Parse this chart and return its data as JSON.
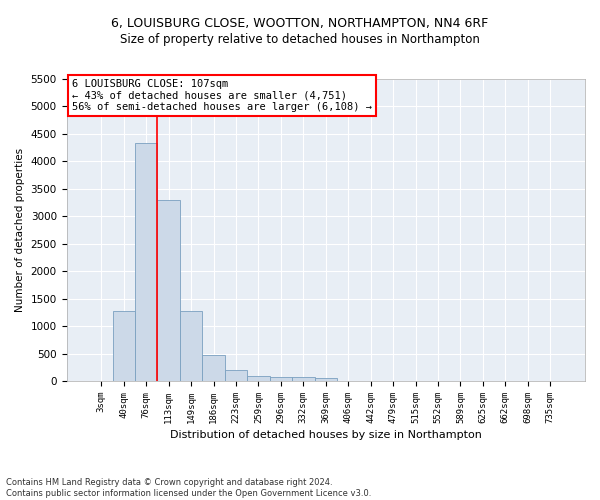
{
  "title_line1": "6, LOUISBURG CLOSE, WOOTTON, NORTHAMPTON, NN4 6RF",
  "title_line2": "Size of property relative to detached houses in Northampton",
  "xlabel": "Distribution of detached houses by size in Northampton",
  "ylabel": "Number of detached properties",
  "footnote": "Contains HM Land Registry data © Crown copyright and database right 2024.\nContains public sector information licensed under the Open Government Licence v3.0.",
  "bar_labels": [
    "3sqm",
    "40sqm",
    "76sqm",
    "113sqm",
    "149sqm",
    "186sqm",
    "223sqm",
    "259sqm",
    "296sqm",
    "332sqm",
    "369sqm",
    "406sqm",
    "442sqm",
    "479sqm",
    "515sqm",
    "552sqm",
    "589sqm",
    "625sqm",
    "662sqm",
    "698sqm",
    "735sqm"
  ],
  "bar_values": [
    0,
    1270,
    4340,
    3290,
    1280,
    480,
    210,
    100,
    80,
    70,
    55,
    0,
    0,
    0,
    0,
    0,
    0,
    0,
    0,
    0,
    0
  ],
  "bar_color": "#ccd9e8",
  "bar_edge_color": "#7aa0c0",
  "plot_bg_color": "#e8eef5",
  "grid_color": "#ffffff",
  "vline_x": 2.5,
  "vline_color": "red",
  "ylim": [
    0,
    5500
  ],
  "yticks": [
    0,
    500,
    1000,
    1500,
    2000,
    2500,
    3000,
    3500,
    4000,
    4500,
    5000,
    5500
  ],
  "annotation_text": "6 LOUISBURG CLOSE: 107sqm\n← 43% of detached houses are smaller (4,751)\n56% of semi-detached houses are larger (6,108) →",
  "annotation_box_color": "white",
  "annotation_box_edge": "red",
  "title_fontsize": 9,
  "subtitle_fontsize": 8.5
}
